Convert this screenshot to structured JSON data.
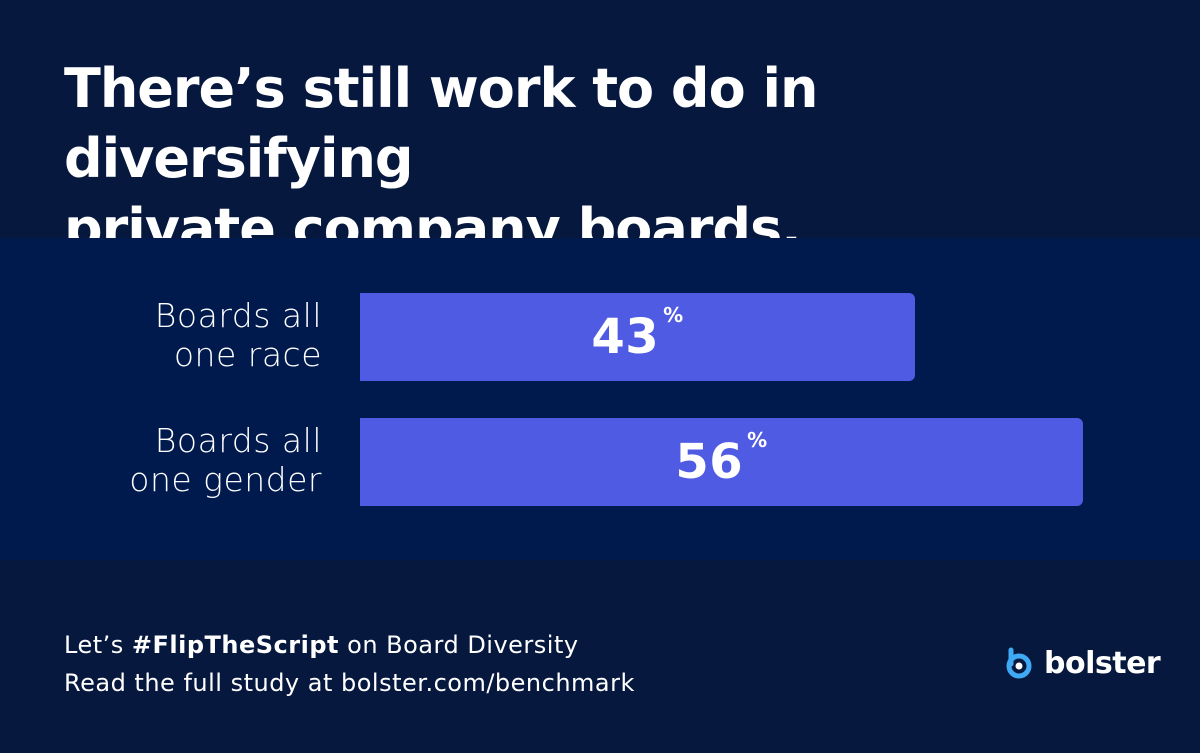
{
  "title": {
    "line1": "There’s still work to do in diversifying",
    "line2": "private company boards."
  },
  "chart_data": {
    "type": "bar",
    "orientation": "horizontal",
    "categories": [
      "Boards all one race",
      "Boards all one gender"
    ],
    "category_lines": [
      [
        "Boards all",
        "one race"
      ],
      [
        "Boards all",
        "one gender"
      ]
    ],
    "values": [
      43,
      56
    ],
    "value_labels": [
      "43",
      "56"
    ],
    "unit": "%",
    "bar_color": "#4f5be2"
  },
  "footer": {
    "line1_prefix": "Let’s ",
    "line1_hashtag": "#FlipTheScript",
    "line1_suffix": " on Board Diversity",
    "line2": "Read the full study at bolster.com/benchmark"
  },
  "logo": {
    "icon": "bolster-b-icon",
    "text": "bolster",
    "accent_color": "#3fa9f5"
  },
  "colors": {
    "background": "#06183d",
    "band": "#001a4e",
    "bar": "#4f5be2"
  }
}
